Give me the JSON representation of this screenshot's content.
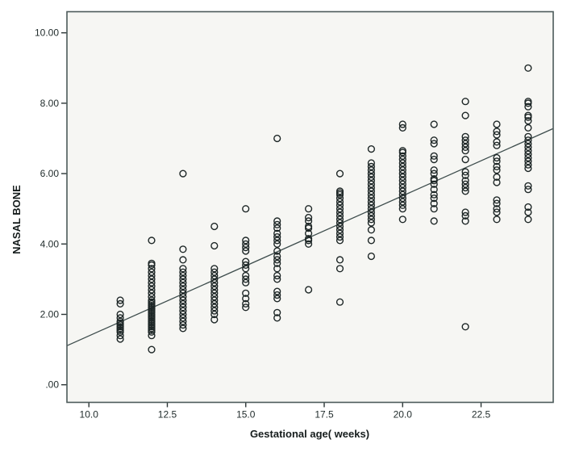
{
  "figure": {
    "plot_bg": "#f6f6f3",
    "border_color": "#4c5a5a",
    "marker_color": "#1d2626",
    "fit_line_color": "#3e4d4d",
    "tick_color": "#2b3535"
  },
  "chart_data": {
    "type": "scatter",
    "title": "",
    "xlabel": "Gestational age( weeks)",
    "ylabel": "NASAL BONE",
    "xlim": [
      9.3,
      24.8
    ],
    "ylim": [
      -0.5,
      10.6
    ],
    "grid": false,
    "legend": "none",
    "x_ticks": {
      "values": [
        10.0,
        12.5,
        15.0,
        17.5,
        20.0,
        22.5
      ],
      "labels": [
        "10.0",
        "12.5",
        "15.0",
        "17.5",
        "20.0",
        "22.5"
      ]
    },
    "y_ticks": {
      "values": [
        0,
        2,
        4,
        6,
        8,
        10
      ],
      "labels": [
        ".00",
        "2.00",
        "4.00",
        "6.00",
        "8.00",
        "10.00"
      ]
    },
    "fit_line": {
      "x_start": 9.3,
      "y_start": 1.11,
      "x_end": 24.8,
      "y_end": 7.28
    },
    "series": [
      {
        "name": "observations",
        "marker": "open-circle",
        "points": [
          [
            11,
            1.3
          ],
          [
            11,
            1.4
          ],
          [
            11,
            1.5
          ],
          [
            11,
            1.55
          ],
          [
            11,
            1.6
          ],
          [
            11,
            1.65
          ],
          [
            11,
            1.7
          ],
          [
            11,
            1.75
          ],
          [
            11,
            1.8
          ],
          [
            11,
            1.9
          ],
          [
            11,
            2.0
          ],
          [
            11,
            2.3
          ],
          [
            11,
            2.4
          ],
          [
            12,
            1.0
          ],
          [
            12,
            1.4
          ],
          [
            12,
            1.5
          ],
          [
            12,
            1.55
          ],
          [
            12,
            1.6
          ],
          [
            12,
            1.65
          ],
          [
            12,
            1.7
          ],
          [
            12,
            1.75
          ],
          [
            12,
            1.8
          ],
          [
            12,
            1.85
          ],
          [
            12,
            1.9
          ],
          [
            12,
            1.95
          ],
          [
            12,
            2.0
          ],
          [
            12,
            2.05
          ],
          [
            12,
            2.1
          ],
          [
            12,
            2.15
          ],
          [
            12,
            2.2
          ],
          [
            12,
            2.25
          ],
          [
            12,
            2.3
          ],
          [
            12,
            2.35
          ],
          [
            12,
            2.4
          ],
          [
            12,
            2.5
          ],
          [
            12,
            2.6
          ],
          [
            12,
            2.7
          ],
          [
            12,
            2.8
          ],
          [
            12,
            2.9
          ],
          [
            12,
            3.0
          ],
          [
            12,
            3.1
          ],
          [
            12,
            3.2
          ],
          [
            12,
            3.3
          ],
          [
            12,
            3.4
          ],
          [
            12,
            3.45
          ],
          [
            12,
            4.1
          ],
          [
            13,
            1.6
          ],
          [
            13,
            1.7
          ],
          [
            13,
            1.8
          ],
          [
            13,
            1.9
          ],
          [
            13,
            2.0
          ],
          [
            13,
            2.1
          ],
          [
            13,
            2.2
          ],
          [
            13,
            2.3
          ],
          [
            13,
            2.4
          ],
          [
            13,
            2.5
          ],
          [
            13,
            2.6
          ],
          [
            13,
            2.7
          ],
          [
            13,
            2.8
          ],
          [
            13,
            2.9
          ],
          [
            13,
            3.0
          ],
          [
            13,
            3.1
          ],
          [
            13,
            3.2
          ],
          [
            13,
            3.3
          ],
          [
            13,
            3.55
          ],
          [
            13,
            3.85
          ],
          [
            13,
            6.0
          ],
          [
            14,
            1.85
          ],
          [
            14,
            2.0
          ],
          [
            14,
            2.1
          ],
          [
            14,
            2.2
          ],
          [
            14,
            2.3
          ],
          [
            14,
            2.4
          ],
          [
            14,
            2.5
          ],
          [
            14,
            2.6
          ],
          [
            14,
            2.7
          ],
          [
            14,
            2.8
          ],
          [
            14,
            2.9
          ],
          [
            14,
            3.0
          ],
          [
            14,
            3.1
          ],
          [
            14,
            3.2
          ],
          [
            14,
            3.3
          ],
          [
            14,
            3.95
          ],
          [
            14,
            4.5
          ],
          [
            15,
            2.2
          ],
          [
            15,
            2.3
          ],
          [
            15,
            2.45
          ],
          [
            15,
            2.6
          ],
          [
            15,
            2.9
          ],
          [
            15,
            3.0
          ],
          [
            15,
            3.1
          ],
          [
            15,
            3.3
          ],
          [
            15,
            3.4
          ],
          [
            15,
            3.5
          ],
          [
            15,
            3.8
          ],
          [
            15,
            3.9
          ],
          [
            15,
            4.0
          ],
          [
            15,
            4.1
          ],
          [
            15,
            5.0
          ],
          [
            16,
            1.9
          ],
          [
            16,
            2.05
          ],
          [
            16,
            2.45
          ],
          [
            16,
            2.55
          ],
          [
            16,
            2.65
          ],
          [
            16,
            3.0
          ],
          [
            16,
            3.1
          ],
          [
            16,
            3.3
          ],
          [
            16,
            3.45
          ],
          [
            16,
            3.55
          ],
          [
            16,
            3.65
          ],
          [
            16,
            3.8
          ],
          [
            16,
            4.0
          ],
          [
            16,
            4.1
          ],
          [
            16,
            4.2
          ],
          [
            16,
            4.3
          ],
          [
            16,
            4.45
          ],
          [
            16,
            4.55
          ],
          [
            16,
            4.65
          ],
          [
            16,
            7.0
          ],
          [
            17,
            2.7
          ],
          [
            17,
            4.0
          ],
          [
            17,
            4.1
          ],
          [
            17,
            4.15
          ],
          [
            17,
            4.3
          ],
          [
            17,
            4.45
          ],
          [
            17,
            4.5
          ],
          [
            17,
            4.65
          ],
          [
            17,
            4.75
          ],
          [
            17,
            5.0
          ],
          [
            18,
            2.35
          ],
          [
            18,
            3.3
          ],
          [
            18,
            3.55
          ],
          [
            18,
            4.1
          ],
          [
            18,
            4.2
          ],
          [
            18,
            4.3
          ],
          [
            18,
            4.4
          ],
          [
            18,
            4.5
          ],
          [
            18,
            4.6
          ],
          [
            18,
            4.7
          ],
          [
            18,
            4.8
          ],
          [
            18,
            4.9
          ],
          [
            18,
            5.0
          ],
          [
            18,
            5.1
          ],
          [
            18,
            5.2
          ],
          [
            18,
            5.3
          ],
          [
            18,
            5.4
          ],
          [
            18,
            5.45
          ],
          [
            18,
            5.5
          ],
          [
            18,
            6.0
          ],
          [
            19,
            3.65
          ],
          [
            19,
            4.1
          ],
          [
            19,
            4.4
          ],
          [
            19,
            4.6
          ],
          [
            19,
            4.7
          ],
          [
            19,
            4.8
          ],
          [
            19,
            4.9
          ],
          [
            19,
            5.0
          ],
          [
            19,
            5.1
          ],
          [
            19,
            5.2
          ],
          [
            19,
            5.3
          ],
          [
            19,
            5.4
          ],
          [
            19,
            5.5
          ],
          [
            19,
            5.6
          ],
          [
            19,
            5.7
          ],
          [
            19,
            5.8
          ],
          [
            19,
            5.9
          ],
          [
            19,
            6.0
          ],
          [
            19,
            6.1
          ],
          [
            19,
            6.2
          ],
          [
            19,
            6.3
          ],
          [
            19,
            6.7
          ],
          [
            20,
            4.7
          ],
          [
            20,
            5.0
          ],
          [
            20,
            5.1
          ],
          [
            20,
            5.2
          ],
          [
            20,
            5.3
          ],
          [
            20,
            5.4
          ],
          [
            20,
            5.5
          ],
          [
            20,
            5.6
          ],
          [
            20,
            5.7
          ],
          [
            20,
            5.8
          ],
          [
            20,
            5.9
          ],
          [
            20,
            6.0
          ],
          [
            20,
            6.1
          ],
          [
            20,
            6.2
          ],
          [
            20,
            6.3
          ],
          [
            20,
            6.4
          ],
          [
            20,
            6.5
          ],
          [
            20,
            6.6
          ],
          [
            20,
            6.65
          ],
          [
            20,
            7.3
          ],
          [
            20,
            7.4
          ],
          [
            21,
            4.65
          ],
          [
            21,
            5.0
          ],
          [
            21,
            5.15
          ],
          [
            21,
            5.3
          ],
          [
            21,
            5.4
          ],
          [
            21,
            5.55
          ],
          [
            21,
            5.7
          ],
          [
            21,
            5.8
          ],
          [
            21,
            5.85
          ],
          [
            21,
            6.0
          ],
          [
            21,
            6.1
          ],
          [
            21,
            6.4
          ],
          [
            21,
            6.5
          ],
          [
            21,
            6.85
          ],
          [
            21,
            6.95
          ],
          [
            21,
            7.4
          ],
          [
            22,
            1.65
          ],
          [
            22,
            4.65
          ],
          [
            22,
            4.8
          ],
          [
            22,
            4.9
          ],
          [
            22,
            5.5
          ],
          [
            22,
            5.6
          ],
          [
            22,
            5.7
          ],
          [
            22,
            5.8
          ],
          [
            22,
            5.95
          ],
          [
            22,
            6.05
          ],
          [
            22,
            6.4
          ],
          [
            22,
            6.65
          ],
          [
            22,
            6.75
          ],
          [
            22,
            6.85
          ],
          [
            22,
            6.95
          ],
          [
            22,
            7.05
          ],
          [
            22,
            7.65
          ],
          [
            22,
            8.05
          ],
          [
            23,
            4.7
          ],
          [
            23,
            4.9
          ],
          [
            23,
            5.0
          ],
          [
            23,
            5.15
          ],
          [
            23,
            5.25
          ],
          [
            23,
            5.75
          ],
          [
            23,
            5.9
          ],
          [
            23,
            6.1
          ],
          [
            23,
            6.2
          ],
          [
            23,
            6.35
          ],
          [
            23,
            6.45
          ],
          [
            23,
            6.8
          ],
          [
            23,
            6.9
          ],
          [
            23,
            7.1
          ],
          [
            23,
            7.2
          ],
          [
            23,
            7.4
          ],
          [
            24,
            4.7
          ],
          [
            24,
            4.9
          ],
          [
            24,
            5.05
          ],
          [
            24,
            5.55
          ],
          [
            24,
            5.65
          ],
          [
            24,
            6.15
          ],
          [
            24,
            6.25
          ],
          [
            24,
            6.35
          ],
          [
            24,
            6.45
          ],
          [
            24,
            6.55
          ],
          [
            24,
            6.65
          ],
          [
            24,
            6.75
          ],
          [
            24,
            6.85
          ],
          [
            24,
            6.95
          ],
          [
            24,
            7.05
          ],
          [
            24,
            7.3
          ],
          [
            24,
            7.5
          ],
          [
            24,
            7.6
          ],
          [
            24,
            7.65
          ],
          [
            24,
            7.9
          ],
          [
            24,
            8.0
          ],
          [
            24,
            8.05
          ],
          [
            24,
            9.0
          ]
        ]
      }
    ]
  }
}
